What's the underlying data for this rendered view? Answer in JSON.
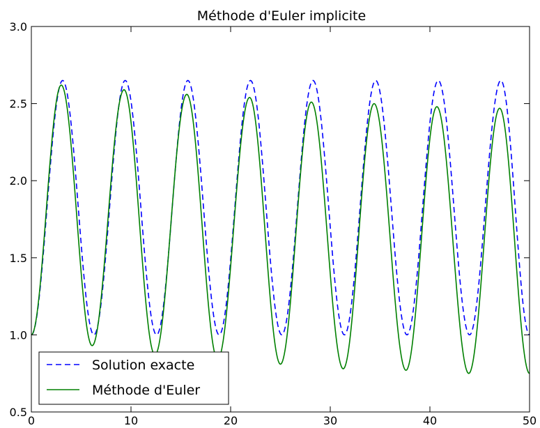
{
  "chart_data": {
    "type": "line",
    "title": "Méthode d'Euler implicite",
    "xlabel": "",
    "ylabel": "",
    "xlim": [
      0,
      50
    ],
    "ylim": [
      0.5,
      3.0
    ],
    "x_ticks": [
      0,
      10,
      20,
      30,
      40,
      50
    ],
    "x_tick_labels": [
      "0",
      "10",
      "20",
      "30",
      "40",
      "50"
    ],
    "y_ticks": [
      0.5,
      1.0,
      1.5,
      2.0,
      2.5,
      3.0
    ],
    "y_tick_labels": [
      "0.5",
      "1.0",
      "1.5",
      "2.0",
      "2.5",
      "3.0"
    ],
    "grid": false,
    "legend_position": "bottom-left",
    "series": [
      {
        "name": "Solution exacte",
        "color": "#0000ff",
        "style": "dashed",
        "x": [
          0.0,
          3.14,
          6.28,
          9.42,
          12.57,
          15.71,
          18.85,
          21.99,
          25.13,
          28.27,
          31.42,
          34.56,
          37.7,
          40.84,
          43.98,
          47.12,
          50.0
        ],
        "y": [
          1.0,
          2.65,
          1.0,
          2.65,
          1.0,
          2.65,
          1.0,
          2.65,
          1.0,
          2.65,
          1.0,
          2.65,
          1.0,
          2.65,
          1.0,
          2.65,
          1.0
        ]
      },
      {
        "name": "Méthode d'Euler",
        "color": "#008000",
        "style": "solid",
        "x": [
          0.0,
          3.0,
          6.1,
          9.3,
          12.4,
          15.6,
          18.7,
          21.9,
          25.0,
          28.1,
          31.3,
          34.4,
          37.6,
          40.7,
          43.9,
          47.0,
          50.0
        ],
        "y": [
          1.0,
          2.62,
          0.93,
          2.59,
          0.87,
          2.56,
          0.84,
          2.54,
          0.81,
          2.51,
          0.78,
          2.5,
          0.77,
          2.48,
          0.75,
          2.47,
          0.75
        ]
      }
    ]
  }
}
